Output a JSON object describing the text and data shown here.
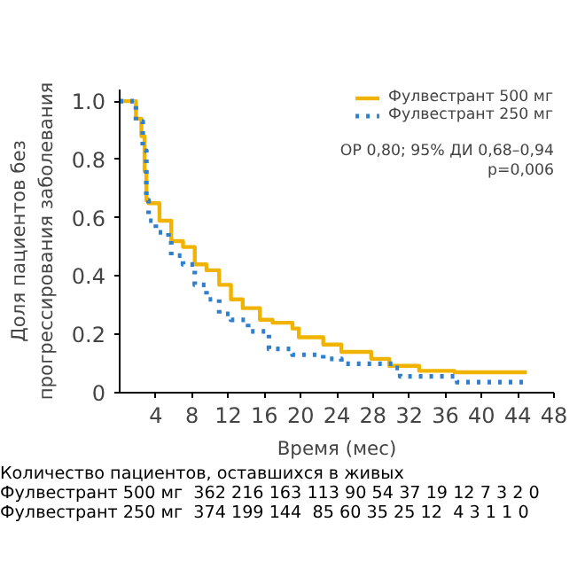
{
  "chart_data": {
    "type": "step",
    "xlabel": "Время (мес)",
    "ylabel": "Доля пациентов без\nпрогрессирования заболевания",
    "xlim": [
      0,
      48
    ],
    "ylim": [
      0,
      1.04
    ],
    "xticks": [
      4,
      8,
      12,
      16,
      20,
      24,
      28,
      32,
      36,
      40,
      44,
      48
    ],
    "yticks": [
      0,
      {
        "value": 0.2,
        "label": "0.2"
      },
      {
        "value": 0.4,
        "label": "0.4"
      },
      {
        "value": 0.6,
        "label": "0.6"
      },
      {
        "value": 0.8,
        "label": "0.8"
      },
      {
        "value": 1,
        "label": "1.0"
      }
    ],
    "series": [
      {
        "name": "Фулвестрант 500 мг",
        "color": "#f0b400",
        "line_style": "solid",
        "x": [
          0,
          1.8,
          2.4,
          2.75,
          2.95,
          3.2,
          4.4,
          5.7,
          7,
          8.3,
          9.6,
          11,
          12.3,
          13.6,
          15.5,
          16.9,
          19.1,
          19.8,
          22.5,
          24.5,
          27.8,
          29.8,
          33.1,
          37,
          45
        ],
        "values": [
          1.0,
          0.94,
          0.88,
          0.76,
          0.66,
          0.65,
          0.59,
          0.52,
          0.5,
          0.44,
          0.42,
          0.37,
          0.32,
          0.29,
          0.25,
          0.24,
          0.22,
          0.19,
          0.165,
          0.14,
          0.116,
          0.092,
          0.075,
          0.07,
          0.07
        ]
      },
      {
        "name": "Фулвестрант 250 мг",
        "color": "#2f7fd0",
        "line_style": "dotted",
        "x": [
          0,
          1.8,
          2.55,
          2.95,
          3.2,
          4,
          5.4,
          5.7,
          7,
          8.3,
          9.6,
          11,
          12.3,
          14.2,
          16.5,
          19.1,
          22.5,
          24.5,
          30.4,
          31,
          37.3,
          45
        ],
        "values": [
          1.0,
          0.93,
          0.83,
          0.66,
          0.59,
          0.55,
          0.53,
          0.47,
          0.44,
          0.37,
          0.32,
          0.27,
          0.25,
          0.21,
          0.15,
          0.13,
          0.116,
          0.099,
          0.085,
          0.056,
          0.036,
          0.036
        ]
      }
    ],
    "legend": "top right",
    "grid": false,
    "annotations": [
      "ОР 0,80; 95% ДИ 0,68–0,94",
      "p=0,006",
      "Количество пациентов, оставшихся в живых",
      "Фулвестрант 500 мг  362 216 163 113 90 54 37 19 12 7 3 2 0",
      "Фулвестрант 250 мг  374 199 144  85 60 35 25 12  4 3 1 1 0"
    ]
  }
}
